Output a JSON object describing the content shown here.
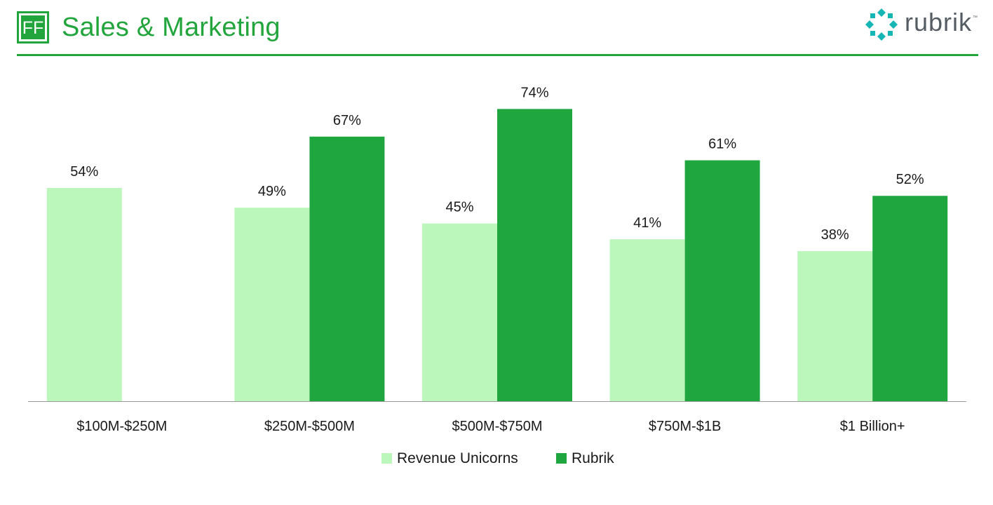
{
  "header": {
    "logo_text": "FF",
    "title": "Sales & Marketing",
    "brand_name": "rubrik",
    "brand_tm": "™"
  },
  "colors": {
    "accent": "#22a53c",
    "series_light": "#bbf7ba",
    "series_dark": "#1fa63f",
    "brand_teal": "#17b6b6",
    "brand_text": "#555c63"
  },
  "chart_data": {
    "type": "bar",
    "categories": [
      "$100M-$250M",
      "$250M-$500M",
      "$500M-$750M",
      "$750M-$1B",
      "$1 Billion+"
    ],
    "series": [
      {
        "name": "Revenue Unicorns",
        "values": [
          54,
          49,
          45,
          41,
          38
        ],
        "labels": [
          "54%",
          "49%",
          "45%",
          "41%",
          "38%"
        ],
        "color": "#bbf7ba"
      },
      {
        "name": "Rubrik",
        "values": [
          null,
          67,
          74,
          61,
          52
        ],
        "labels": [
          "",
          "67%",
          "74%",
          "61%",
          "52%"
        ],
        "color": "#1fa63f"
      }
    ],
    "title": "",
    "xlabel": "",
    "ylabel": "",
    "ylim": [
      0,
      80
    ],
    "grid": false,
    "legend_position": "bottom"
  }
}
